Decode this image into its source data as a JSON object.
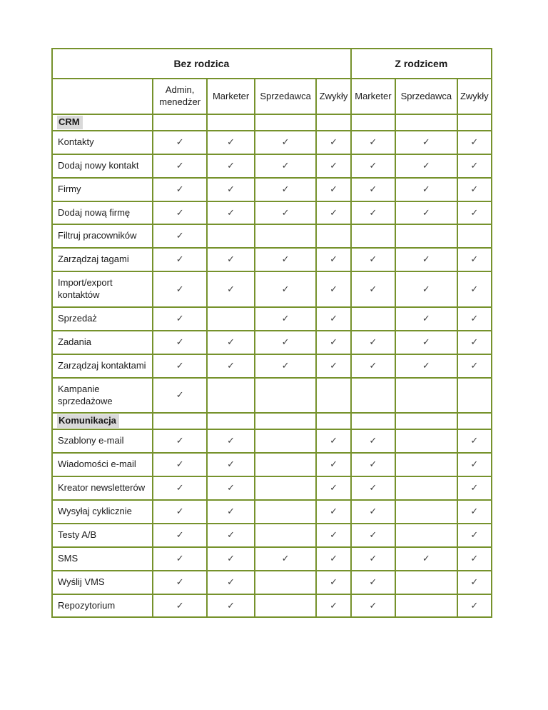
{
  "table": {
    "group_headers": [
      {
        "label": "Bez rodzica",
        "colspan": 5
      },
      {
        "label": "Z rodzicem",
        "colspan": 3
      }
    ],
    "column_headers": [
      "",
      "Admin, menedżer",
      "Marketer",
      "Sprzedawca",
      "Zwykły",
      "Marketer",
      "Sprzedawca",
      "Zwykły"
    ],
    "check_glyph": "✓",
    "colors": {
      "border": "#76922c",
      "section_bg": "#d9d9d9",
      "check": "#404040"
    },
    "sections": [
      {
        "title": "CRM",
        "rows": [
          {
            "label": "Kontakty",
            "checks": [
              true,
              true,
              true,
              true,
              true,
              true,
              true
            ]
          },
          {
            "label": "Dodaj nowy kontakt",
            "checks": [
              true,
              true,
              true,
              true,
              true,
              true,
              true
            ]
          },
          {
            "label": "Firmy",
            "checks": [
              true,
              true,
              true,
              true,
              true,
              true,
              true
            ]
          },
          {
            "label": "Dodaj nową firmę",
            "checks": [
              true,
              true,
              true,
              true,
              true,
              true,
              true
            ]
          },
          {
            "label": "Filtruj pracowników",
            "checks": [
              true,
              false,
              false,
              false,
              false,
              false,
              false
            ]
          },
          {
            "label": "Zarządzaj tagami",
            "checks": [
              true,
              true,
              true,
              true,
              true,
              true,
              true
            ]
          },
          {
            "label": "Import/export kontaktów",
            "checks": [
              true,
              true,
              true,
              true,
              true,
              true,
              true
            ]
          },
          {
            "label": "Sprzedaż",
            "checks": [
              true,
              false,
              true,
              true,
              false,
              true,
              true
            ]
          },
          {
            "label": "Zadania",
            "checks": [
              true,
              true,
              true,
              true,
              true,
              true,
              true
            ]
          },
          {
            "label": "Zarządzaj kontaktami",
            "checks": [
              true,
              true,
              true,
              true,
              true,
              true,
              true
            ]
          },
          {
            "label": "Kampanie sprzedażowe",
            "checks": [
              true,
              false,
              false,
              false,
              false,
              false,
              false
            ]
          }
        ]
      },
      {
        "title": "Komunikacja",
        "rows": [
          {
            "label": "Szablony e-mail",
            "checks": [
              true,
              true,
              false,
              true,
              true,
              false,
              true
            ]
          },
          {
            "label": "Wiadomości e-mail",
            "checks": [
              true,
              true,
              false,
              true,
              true,
              false,
              true
            ]
          },
          {
            "label": "Kreator newsletterów",
            "checks": [
              true,
              true,
              false,
              true,
              true,
              false,
              true
            ]
          },
          {
            "label": "Wysyłaj cyklicznie",
            "checks": [
              true,
              true,
              false,
              true,
              true,
              false,
              true
            ]
          },
          {
            "label": "Testy A/B",
            "checks": [
              true,
              true,
              false,
              true,
              true,
              false,
              true
            ]
          },
          {
            "label": "SMS",
            "checks": [
              true,
              true,
              true,
              true,
              true,
              true,
              true
            ]
          },
          {
            "label": "Wyślij VMS",
            "checks": [
              true,
              true,
              false,
              true,
              true,
              false,
              true
            ]
          },
          {
            "label": "Repozytorium",
            "checks": [
              true,
              true,
              false,
              true,
              true,
              false,
              true
            ]
          }
        ]
      }
    ]
  }
}
